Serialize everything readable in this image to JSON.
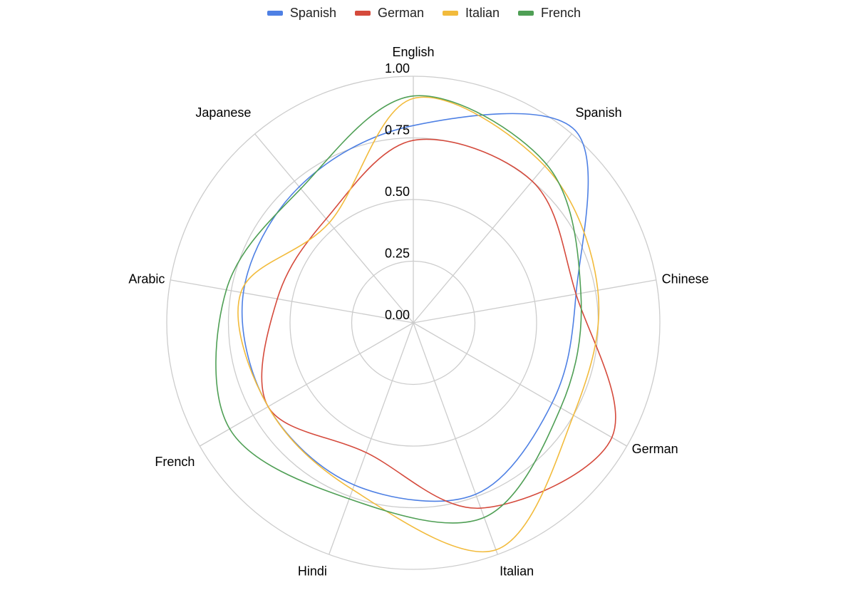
{
  "chart_data": {
    "type": "radar",
    "categories": [
      "English",
      "Spanish",
      "Chinese",
      "German",
      "Italian",
      "Hindi",
      "French",
      "Arabic",
      "Japanese"
    ],
    "series": [
      {
        "name": "Spanish",
        "color": "#4e80e4",
        "values": [
          0.8,
          1.02,
          0.67,
          0.65,
          0.74,
          0.7,
          0.68,
          0.7,
          0.72
        ]
      },
      {
        "name": "German",
        "color": "#d54a3c",
        "values": [
          0.74,
          0.75,
          0.67,
          0.93,
          0.8,
          0.56,
          0.68,
          0.56,
          0.55
        ]
      },
      {
        "name": "Italian",
        "color": "#f2bb3c",
        "values": [
          0.91,
          0.83,
          0.76,
          0.75,
          0.98,
          0.72,
          0.68,
          0.71,
          0.53
        ]
      },
      {
        "name": "French",
        "color": "#4f9f55",
        "values": [
          0.92,
          0.84,
          0.69,
          0.69,
          0.84,
          0.76,
          0.86,
          0.77,
          0.71
        ]
      }
    ],
    "rlim": [
      0,
      1
    ],
    "ticks": [
      "0.00",
      "0.25",
      "0.50",
      "0.75",
      "1.00"
    ],
    "legend_position": "top",
    "grid": true
  }
}
